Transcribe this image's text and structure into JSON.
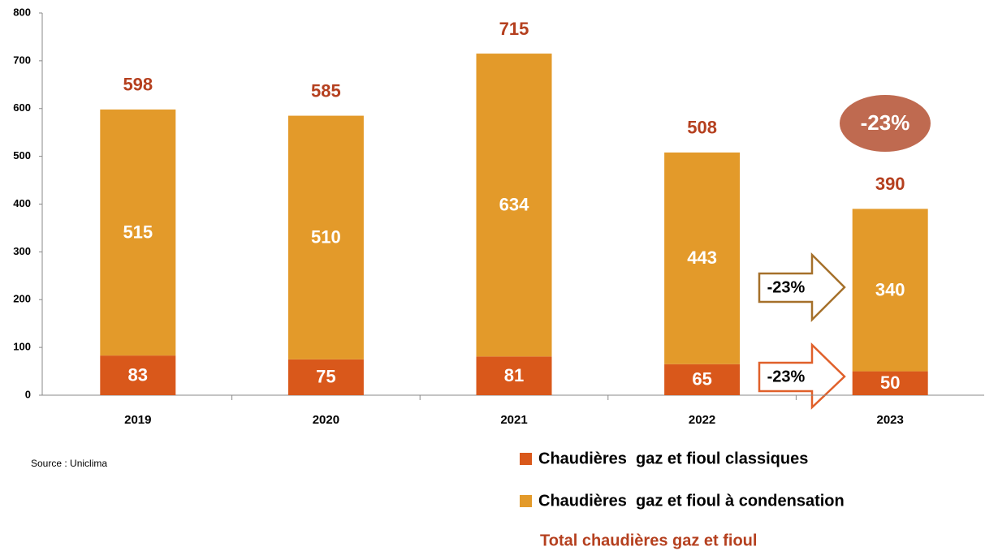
{
  "chart_data": {
    "type": "stacked_bar",
    "categories": [
      "2019",
      "2020",
      "2021",
      "2022",
      "2023"
    ],
    "series": [
      {
        "name": "Chaudières  gaz et fioul classiques",
        "color": "#d9581b",
        "values": [
          83,
          75,
          81,
          65,
          50
        ]
      },
      {
        "name": "Chaudières  gaz et fioul à condensation",
        "color": "#e39a2a",
        "values": [
          515,
          510,
          634,
          443,
          340
        ]
      }
    ],
    "totals": {
      "name": "Total chaudières gaz et fioul",
      "color": "#b5401f",
      "values": [
        598,
        585,
        715,
        508,
        390
      ]
    },
    "ylim": [
      0,
      800
    ],
    "yticks": [
      0,
      100,
      200,
      300,
      400,
      500,
      600,
      700,
      800
    ],
    "grid": false,
    "annotations": [
      "-23%",
      "-23%",
      "-23%"
    ],
    "source": "Source : Uniclima"
  }
}
